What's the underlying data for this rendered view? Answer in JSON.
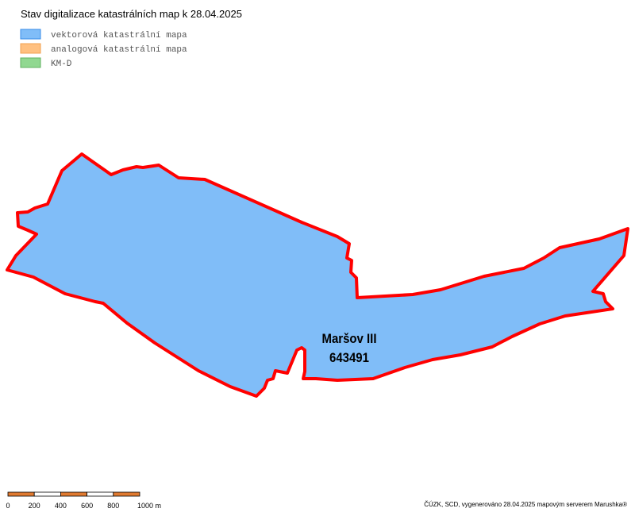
{
  "header": {
    "title": "Stav digitalizace katastrálních map k 28.04.2025"
  },
  "legend": [
    {
      "label": "vektorová katastrální mapa",
      "color": "#80bdf8",
      "border": "#3b8ee8"
    },
    {
      "label": "analogová katastrální mapa",
      "color": "#ffc080",
      "border": "#f0a050"
    },
    {
      "label": "KM-D",
      "color": "#90d890",
      "border": "#60b060"
    }
  ],
  "parcel": {
    "name": "Maršov III",
    "code": "643491"
  },
  "scale_bar": {
    "labels": [
      "0",
      "200",
      "400",
      "600",
      "800",
      "1000 m"
    ]
  },
  "footer": "ČÚZK, SCD, vygenerováno 28.04.2025 mapovým serverem Marushka®"
}
